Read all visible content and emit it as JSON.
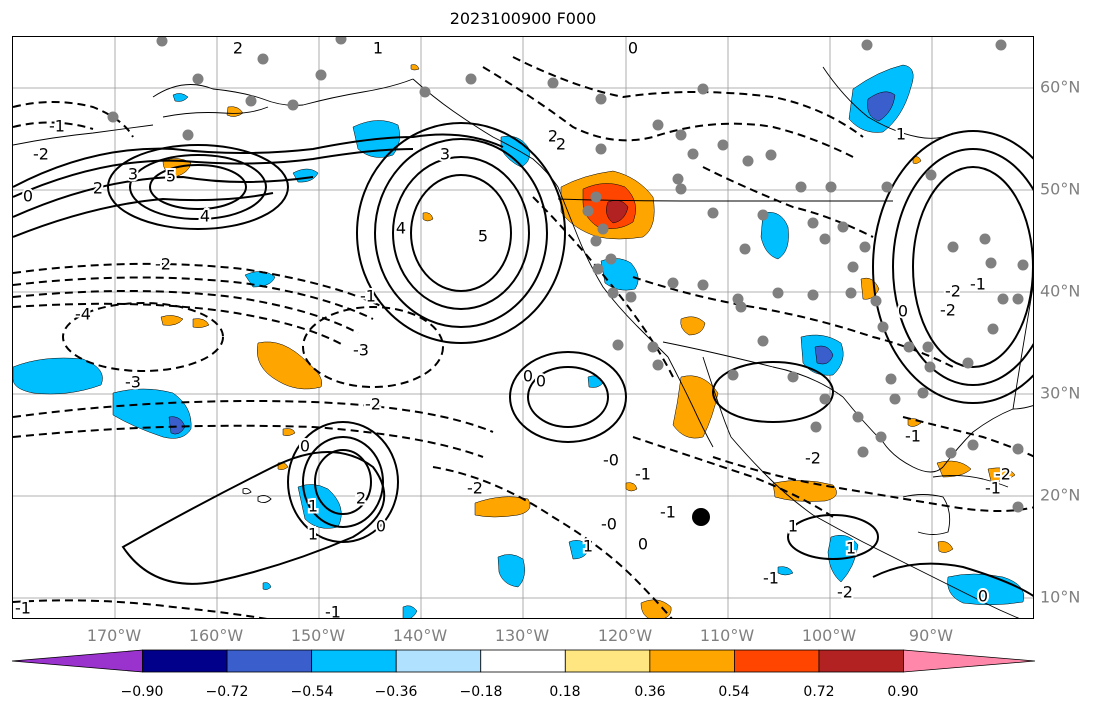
{
  "title": "2023100900 F000",
  "lon_labels": [
    "170°W",
    "160°W",
    "150°W",
    "140°W",
    "130°W",
    "120°W",
    "110°W",
    "100°W",
    "90°W"
  ],
  "lat_labels": [
    "60°N",
    "50°N",
    "40°N",
    "30°N",
    "20°N",
    "10°N"
  ],
  "colorbar": {
    "tick_labels": [
      "−0.90",
      "−0.72",
      "−0.54",
      "−0.36",
      "−0.18",
      "0.18",
      "0.36",
      "0.54",
      "0.72",
      "0.90"
    ],
    "colors": [
      "#9a32cd",
      "#00008b",
      "#3a5fcd",
      "#00bfff",
      "#b0e2ff",
      "#ffffff",
      "#ffe680",
      "#ffa500",
      "#ff4500",
      "#b22222",
      "#ff88aa"
    ]
  },
  "colors": {
    "frame": "#000000",
    "gridlines": "#999999",
    "axis_labels": "#808080",
    "coastlines": "#000000",
    "station_dots": "#808080"
  },
  "contour_labels": [
    {
      "text": "2",
      "style": "solid"
    },
    {
      "text": "3",
      "style": "solid"
    },
    {
      "text": "5",
      "style": "solid"
    },
    {
      "text": "4",
      "style": "solid"
    },
    {
      "text": "2",
      "style": "solid"
    },
    {
      "text": "0",
      "style": "dashed"
    },
    {
      "text": "-1",
      "style": "dashed"
    },
    {
      "text": "2",
      "style": "solid"
    },
    {
      "text": "3",
      "style": "solid"
    },
    {
      "text": "4",
      "style": "solid"
    },
    {
      "text": "5",
      "style": "solid"
    },
    {
      "text": "1",
      "style": "solid"
    },
    {
      "text": "0",
      "style": "solid"
    },
    {
      "text": "-1",
      "style": "dashed"
    },
    {
      "text": "-4",
      "style": "dashed"
    },
    {
      "text": "-3",
      "style": "dashed"
    },
    {
      "text": "-3",
      "style": "dashed"
    },
    {
      "text": "-2",
      "style": "dashed"
    },
    {
      "text": "0",
      "style": "solid"
    },
    {
      "text": "1",
      "style": "solid"
    },
    {
      "text": "2",
      "style": "solid"
    },
    {
      "text": "1",
      "style": "solid"
    },
    {
      "text": "0",
      "style": "solid"
    },
    {
      "text": "-2",
      "style": "dashed"
    },
    {
      "text": "0",
      "style": "solid"
    },
    {
      "text": "1",
      "style": "solid"
    },
    {
      "text": "-1",
      "style": "dashed"
    },
    {
      "text": "-2",
      "style": "dashed"
    },
    {
      "text": "-0",
      "style": "dashed"
    },
    {
      "text": "-1",
      "style": "dashed"
    },
    {
      "text": "-1",
      "style": "dashed"
    },
    {
      "text": "-1",
      "style": "dashed"
    },
    {
      "text": "-2",
      "style": "dashed"
    },
    {
      "text": "-0",
      "style": "dashed"
    },
    {
      "text": "0",
      "style": "solid"
    },
    {
      "text": "-1",
      "style": "dashed"
    },
    {
      "text": "-2",
      "style": "dashed"
    },
    {
      "text": "1",
      "style": "solid"
    },
    {
      "text": "0",
      "style": "solid"
    },
    {
      "text": "1",
      "style": "solid"
    },
    {
      "text": "-1",
      "style": "dashed"
    },
    {
      "text": "-2",
      "style": "dashed"
    },
    {
      "text": "-2",
      "style": "dashed"
    },
    {
      "text": "2",
      "style": "solid"
    },
    {
      "text": "0",
      "style": "solid"
    },
    {
      "text": "-1",
      "style": "dashed"
    },
    {
      "text": "-2",
      "style": "dashed"
    },
    {
      "text": "-1",
      "style": "dashed"
    },
    {
      "text": "1",
      "style": "solid"
    },
    {
      "text": "-1",
      "style": "dashed"
    },
    {
      "text": "0",
      "style": "solid"
    },
    {
      "text": "-2",
      "style": "dashed"
    }
  ]
}
